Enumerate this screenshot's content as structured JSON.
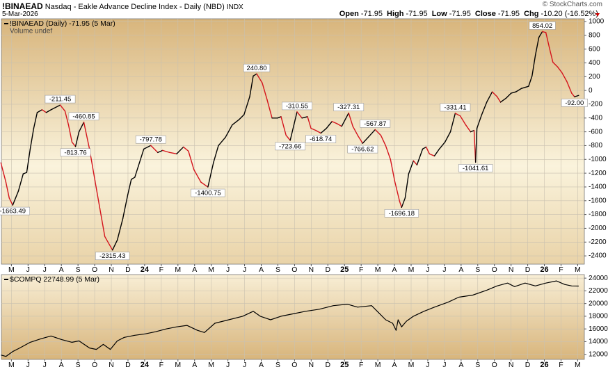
{
  "header": {
    "symbol": "!BINAEAD",
    "description": "Nasdaq - Eakle Advance Decline Index - Daily (NBD)",
    "exchange": "INDX",
    "date": "5-Mar-2026",
    "watermark": "© StockCharts.com",
    "quote": [
      {
        "label": "Open",
        "value": "-71.95"
      },
      {
        "label": "High",
        "value": "-71.95"
      },
      {
        "label": "Low",
        "value": "-71.95"
      },
      {
        "label": "Close",
        "value": "-71.95"
      },
      {
        "label": "Chg",
        "value": "-10.20 (-16.52%)"
      }
    ]
  },
  "chart_data": [
    {
      "type": "line",
      "note": "Volume undef",
      "grid": true,
      "up_color": "#000000",
      "down_color": "#d4141c",
      "xlim": [
        -0.6,
        34.4
      ],
      "ylim": [
        -2520,
        1040
      ],
      "xticks": [
        {
          "value": 0,
          "label": "M"
        },
        {
          "value": 1,
          "label": "J"
        },
        {
          "value": 2,
          "label": "J"
        },
        {
          "value": 3,
          "label": "A"
        },
        {
          "value": 4,
          "label": "S"
        },
        {
          "value": 5,
          "label": "O"
        },
        {
          "value": 6,
          "label": "N"
        },
        {
          "value": 7,
          "label": "D"
        },
        {
          "value": 8,
          "label": "24"
        },
        {
          "value": 9,
          "label": "F"
        },
        {
          "value": 10,
          "label": "M"
        },
        {
          "value": 11,
          "label": "A"
        },
        {
          "value": 12,
          "label": "M"
        },
        {
          "value": 13,
          "label": "J"
        },
        {
          "value": 14,
          "label": "J"
        },
        {
          "value": 15,
          "label": "A"
        },
        {
          "value": 16,
          "label": "S"
        },
        {
          "value": 17,
          "label": "O"
        },
        {
          "value": 18,
          "label": "N"
        },
        {
          "value": 19,
          "label": "D"
        },
        {
          "value": 20,
          "label": "25"
        },
        {
          "value": 21,
          "label": "F"
        },
        {
          "value": 22,
          "label": "M"
        },
        {
          "value": 23,
          "label": "A"
        },
        {
          "value": 24,
          "label": "M"
        },
        {
          "value": 25,
          "label": "J"
        },
        {
          "value": 26,
          "label": "J"
        },
        {
          "value": 27,
          "label": "A"
        },
        {
          "value": 28,
          "label": "S"
        },
        {
          "value": 29,
          "label": "O"
        },
        {
          "value": 30,
          "label": "N"
        },
        {
          "value": 31,
          "label": "D"
        },
        {
          "value": 32,
          "label": "26"
        },
        {
          "value": 33,
          "label": "F"
        },
        {
          "value": 34,
          "label": "M"
        }
      ],
      "yticks": [
        1000,
        800,
        600,
        400,
        200,
        0,
        -200,
        -400,
        -600,
        -800,
        -1000,
        -1200,
        -1400,
        -1600,
        -1800,
        -2000,
        -2200,
        -2400
      ],
      "x": [
        -0.63,
        -0.33,
        -0.13,
        0.08,
        0.42,
        0.71,
        0.92,
        1.13,
        1.34,
        1.55,
        1.84,
        2.09,
        2.38,
        2.93,
        3.22,
        3.43,
        3.64,
        3.85,
        4.06,
        4.35,
        4.69,
        5.02,
        5.31,
        5.61,
        6.07,
        6.36,
        6.69,
        6.99,
        7.2,
        7.41,
        7.62,
        7.95,
        8.37,
        8.79,
        9.08,
        9.5,
        9.92,
        10.33,
        10.63,
        10.96,
        11.38,
        11.8,
        12.13,
        12.43,
        12.85,
        13.26,
        13.68,
        13.97,
        14.31,
        14.52,
        14.73,
        15.06,
        15.36,
        15.65,
        15.98,
        16.19,
        16.49,
        16.74,
        17.15,
        17.45,
        17.78,
        17.99,
        18.28,
        18.58,
        18.91,
        19.25,
        19.54,
        19.83,
        20.25,
        20.5,
        20.79,
        21.09,
        21.42,
        21.84,
        22.18,
        22.47,
        22.76,
        23.01,
        23.31,
        23.43,
        23.64,
        23.85,
        24.14,
        24.35,
        24.69,
        24.9,
        25.1,
        25.4,
        25.69,
        26.03,
        26.36,
        26.65,
        26.95,
        27.28,
        27.57,
        27.78,
        27.87,
        27.95,
        28.24,
        28.54,
        28.87,
        29.16,
        29.37,
        29.71,
        30,
        30.29,
        30.63,
        31.05,
        31.26,
        31.46,
        31.67,
        31.88,
        32.09,
        32.3,
        32.51,
        32.8,
        33.05,
        33.35,
        33.64,
        33.81,
        34.06
      ],
      "series": [
        {
          "name": "!BINAEAD (Daily) -71.95 (5 Mar)",
          "color": "#000000",
          "values": [
            -1050,
            -1330,
            -1560,
            -1663.49,
            -1460,
            -1210,
            -1190,
            -850,
            -550,
            -320,
            -280,
            -320,
            -280,
            -211.45,
            -300,
            -500,
            -750,
            -813.76,
            -600,
            -460.85,
            -850,
            -1310,
            -1710,
            -2120,
            -2315.43,
            -2170,
            -1860,
            -1510,
            -1290,
            -1260,
            -1100,
            -850,
            -797.78,
            -900,
            -870,
            -900,
            -920,
            -820,
            -880,
            -1150,
            -1330,
            -1400.75,
            -1050,
            -800,
            -680,
            -500,
            -420,
            -350,
            -90,
            210,
            240.8,
            110,
            -140,
            -400,
            -400,
            -380,
            -650,
            -723.66,
            -310.55,
            -400,
            -380,
            -550,
            -580,
            -618.74,
            -550,
            -450,
            -480,
            -520,
            -327.31,
            -520,
            -650,
            -766.62,
            -680,
            -567.87,
            -650,
            -800,
            -1000,
            -1310,
            -1610,
            -1696.18,
            -1560,
            -1210,
            -1020,
            -1080,
            -850,
            -820,
            -920,
            -950,
            -850,
            -750,
            -600,
            -331.41,
            -370,
            -500,
            -600,
            -580,
            -1041.61,
            -550,
            -350,
            -170,
            -20,
            -90,
            -170,
            -110,
            -40,
            -20,
            30,
            60,
            210,
            510,
            770,
            854.02,
            840,
            620,
            410,
            340,
            260,
            130,
            -40,
            -92,
            -71.95
          ],
          "value_labels": [
            null,
            null,
            null,
            "-1663.49",
            null,
            null,
            null,
            null,
            null,
            null,
            null,
            null,
            null,
            "-211.45",
            null,
            null,
            null,
            "-813.76",
            null,
            "-460.85",
            null,
            null,
            null,
            null,
            "-2315.43",
            null,
            null,
            null,
            null,
            null,
            null,
            null,
            "-797.78",
            null,
            null,
            null,
            null,
            null,
            null,
            null,
            null,
            "-1400.75",
            null,
            null,
            null,
            null,
            null,
            null,
            null,
            null,
            "240.80",
            null,
            null,
            null,
            null,
            null,
            null,
            "-723.66",
            "-310.55",
            null,
            null,
            null,
            null,
            "-618.74",
            null,
            null,
            null,
            null,
            "-327.31",
            null,
            null,
            "-766.62",
            null,
            "-567.87",
            null,
            null,
            null,
            null,
            null,
            "-1696.18",
            null,
            null,
            null,
            null,
            null,
            null,
            null,
            null,
            null,
            null,
            null,
            "-331.41",
            null,
            null,
            null,
            null,
            "-1041.61",
            null,
            null,
            null,
            null,
            null,
            null,
            null,
            null,
            null,
            null,
            null,
            null,
            null,
            null,
            "854.02",
            null,
            null,
            null,
            null,
            null,
            null,
            null,
            "-92.00",
            null
          ]
        }
      ]
    },
    {
      "type": "line",
      "grid": true,
      "xlim": [
        -0.6,
        34.4
      ],
      "ylim": [
        11200,
        24560
      ],
      "xticks": [
        {
          "value": 0,
          "label": "M"
        },
        {
          "value": 1,
          "label": "J"
        },
        {
          "value": 2,
          "label": "J"
        },
        {
          "value": 3,
          "label": "A"
        },
        {
          "value": 4,
          "label": "S"
        },
        {
          "value": 5,
          "label": "O"
        },
        {
          "value": 6,
          "label": "N"
        },
        {
          "value": 7,
          "label": "D"
        },
        {
          "value": 8,
          "label": "24"
        },
        {
          "value": 9,
          "label": "F"
        },
        {
          "value": 10,
          "label": "M"
        },
        {
          "value": 11,
          "label": "A"
        },
        {
          "value": 12,
          "label": "M"
        },
        {
          "value": 13,
          "label": "J"
        },
        {
          "value": 14,
          "label": "J"
        },
        {
          "value": 15,
          "label": "A"
        },
        {
          "value": 16,
          "label": "S"
        },
        {
          "value": 17,
          "label": "O"
        },
        {
          "value": 18,
          "label": "N"
        },
        {
          "value": 19,
          "label": "D"
        },
        {
          "value": 20,
          "label": "25"
        },
        {
          "value": 21,
          "label": "F"
        },
        {
          "value": 22,
          "label": "M"
        },
        {
          "value": 23,
          "label": "A"
        },
        {
          "value": 24,
          "label": "M"
        },
        {
          "value": 25,
          "label": "J"
        },
        {
          "value": 26,
          "label": "J"
        },
        {
          "value": 27,
          "label": "A"
        },
        {
          "value": 28,
          "label": "S"
        },
        {
          "value": 29,
          "label": "O"
        },
        {
          "value": 30,
          "label": "N"
        },
        {
          "value": 31,
          "label": "D"
        },
        {
          "value": 32,
          "label": "26"
        },
        {
          "value": 33,
          "label": "F"
        },
        {
          "value": 34,
          "label": "M"
        }
      ],
      "yticks": [
        24000,
        22000,
        20000,
        18000,
        16000,
        14000,
        12000
      ],
      "x": [
        -0.63,
        -0.33,
        0.08,
        0.5,
        1.13,
        1.76,
        2.38,
        3.01,
        3.64,
        4.06,
        4.69,
        5.1,
        5.52,
        5.94,
        6.36,
        6.78,
        7.41,
        8.03,
        8.66,
        9.29,
        9.92,
        10.54,
        11.17,
        11.59,
        12.22,
        13.05,
        13.89,
        14.52,
        14.94,
        15.56,
        16.19,
        16.82,
        17.66,
        18.49,
        19.33,
        20.17,
        20.79,
        21.63,
        22.05,
        22.47,
        22.89,
        23.1,
        23.22,
        23.43,
        23.72,
        24.14,
        24.77,
        25.4,
        26.23,
        26.86,
        27.7,
        28.54,
        29.16,
        29.79,
        30.21,
        30.84,
        31.46,
        32.09,
        32.72,
        33.22,
        33.64,
        34.06
      ],
      "series": [
        {
          "name": "$COMPQ 22748.99 (5 Mar)",
          "color": "#000000",
          "values": [
            11890,
            11670,
            12440,
            13000,
            13890,
            14440,
            14890,
            14330,
            13890,
            14110,
            13000,
            12780,
            13560,
            12780,
            14110,
            14670,
            15000,
            15220,
            15560,
            16000,
            16330,
            16550,
            15780,
            15440,
            16890,
            17440,
            18000,
            18780,
            18000,
            17440,
            18000,
            18330,
            18780,
            19110,
            19670,
            19890,
            19440,
            19670,
            18560,
            17440,
            16890,
            15780,
            17440,
            16330,
            17220,
            18000,
            18780,
            19440,
            20220,
            21000,
            21330,
            22110,
            22780,
            23220,
            22670,
            23220,
            22780,
            23220,
            23560,
            23000,
            22780,
            22748.99
          ]
        }
      ]
    }
  ]
}
